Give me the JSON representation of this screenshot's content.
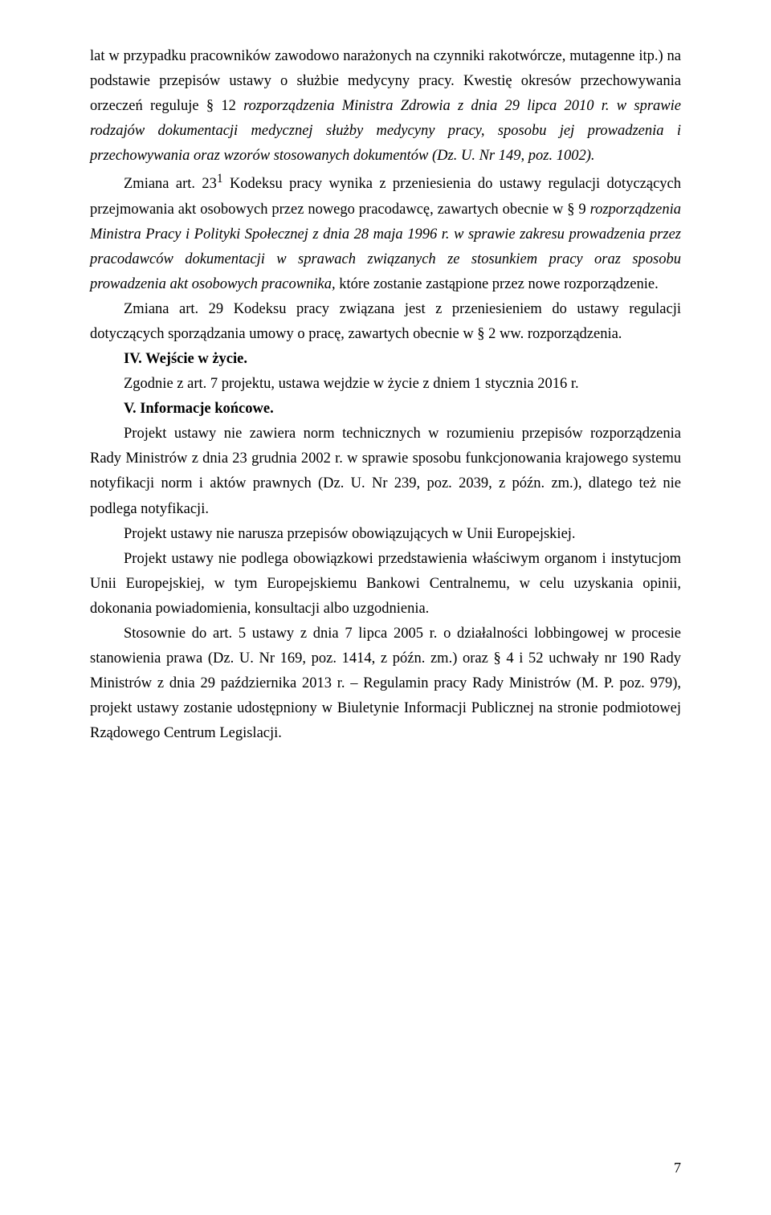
{
  "p1_a": "lat w przypadku pracowników zawodowo narażonych na czynniki rakotwórcze, mutagenne itp.) na podstawie przepisów ustawy o służbie medycyny pracy. Kwestię okresów przechowywania orzeczeń reguluje § 12 ",
  "p1_b": "rozporządzenia Ministra Zdrowia z dnia 29 lipca 2010 r. w sprawie rodzajów dokumentacji medycznej służby medycyny pracy, sposobu jej prowadzenia i przechowywania oraz wzorów stosowanych dokumentów (Dz. U. Nr 149, poz. 1002).",
  "p2_a": "Zmiana art. 23",
  "p2_sup": "1",
  "p2_b": " Kodeksu pracy wynika z przeniesienia do ustawy regulacji dotyczących przejmowania akt osobowych przez nowego pracodawcę, zawartych obecnie w § 9 ",
  "p2_c": "rozporządzenia Ministra Pracy i Polityki Społecznej z dnia 28 maja 1996 r. w sprawie zakresu prowadzenia przez pracodawców dokumentacji w sprawach związanych ze stosunkiem pracy oraz sposobu prowadzenia akt osobowych pracownika,",
  "p2_d": " które zostanie zastąpione przez nowe rozporządzenie.",
  "p3": "Zmiana art. 29 Kodeksu pracy związana jest z przeniesieniem do ustawy regulacji dotyczących sporządzania umowy o pracę, zawartych obecnie w § 2 ww. rozporządzenia.",
  "h4": "IV. Wejście w życie.",
  "p4": "Zgodnie z art. 7 projektu, ustawa wejdzie w życie z dniem 1 stycznia 2016 r.",
  "h5": "V. Informacje końcowe.",
  "p5": "Projekt ustawy nie zawiera norm technicznych w rozumieniu przepisów rozporządzenia Rady Ministrów z dnia 23 grudnia 2002 r. w sprawie sposobu funkcjonowania krajowego systemu notyfikacji norm i aktów prawnych (Dz. U. Nr 239, poz. 2039, z późn. zm.), dlatego też nie podlega notyfikacji.",
  "p6": "Projekt  ustawy nie narusza przepisów obowiązujących w Unii Europejskiej.",
  "p7": "Projekt ustawy nie podlega obowiązkowi przedstawienia właściwym organom i instytucjom Unii Europejskiej, w tym Europejskiemu Bankowi Centralnemu, w celu uzyskania opinii, dokonania powiadomienia, konsultacji albo uzgodnienia.",
  "p8": "Stosownie do art. 5 ustawy z dnia 7 lipca 2005 r. o działalności lobbingowej w procesie stanowienia prawa (Dz. U. Nr 169, poz. 1414, z późn. zm.) oraz § 4 i 52 uchwały nr 190 Rady Ministrów z dnia 29 października 2013 r. – Regulamin pracy Rady Ministrów (M. P. poz. 979), projekt ustawy zostanie udostępniony w Biuletynie Informacji Publicznej na stronie podmiotowej Rządowego Centrum Legislacji.",
  "page_number": "7"
}
